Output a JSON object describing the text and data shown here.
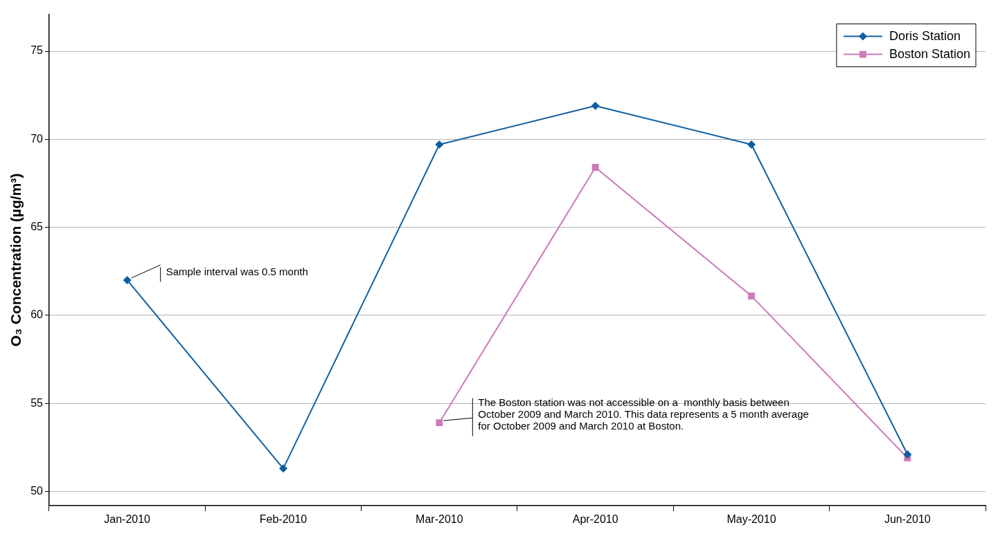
{
  "chart_data": {
    "type": "line",
    "ylabel": "O₃ Concentration (µg/m³)",
    "categories": [
      "Jan-2010",
      "Feb-2010",
      "Mar-2010",
      "Apr-2010",
      "May-2010",
      "Jun-2010"
    ],
    "series": [
      {
        "name": "Doris Station",
        "color": "#0f5fa0",
        "marker": "diamond",
        "values": [
          62.0,
          51.3,
          69.7,
          71.9,
          69.7,
          52.1
        ]
      },
      {
        "name": "Boston Station",
        "color": "#cc7ab8",
        "marker": "square",
        "values": [
          null,
          null,
          53.9,
          68.4,
          61.1,
          51.9
        ]
      }
    ],
    "ylim": [
      49.2,
      77.1
    ],
    "yticks": [
      50,
      55,
      60,
      65,
      70,
      75
    ],
    "grid": "y",
    "legend": "top right",
    "line_style": "solid",
    "annotations": [
      {
        "text": "Sample interval was 0.5 month",
        "x": "Jan-2010",
        "y": 62.0
      },
      {
        "text": "The Boston station was not accessible on a  monthly basis between October 2009 and March 2010. This data represents a 5 month average for October 2009 and March 2010 at Boston.",
        "x": "Mar-2010",
        "y": 53.9
      }
    ]
  }
}
